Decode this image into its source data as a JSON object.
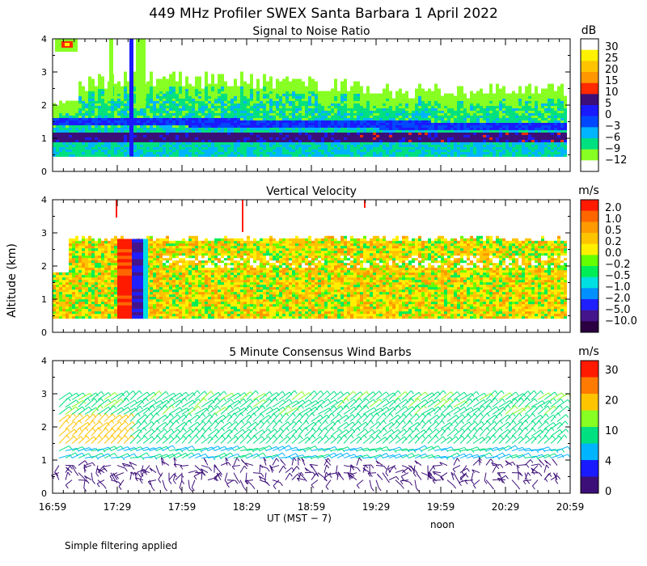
{
  "title": "449 MHz Profiler SWEX Santa Barbara  1 April 2022",
  "ylabel": "Altitude (km)",
  "xlabel": "UT  (MST − 7)",
  "noon_label": "noon",
  "footnote": "Simple filtering applied",
  "chart_data": [
    {
      "type": "heatmap",
      "title": "Signal to Noise Ratio",
      "unit": "dB",
      "x_ticks": [
        "16:59",
        "17:29",
        "17:59",
        "18:29",
        "18:59",
        "19:29",
        "19:59",
        "20:29",
        "20:59"
      ],
      "y_ticks": [
        0,
        1,
        2,
        3,
        4
      ],
      "ylim": [
        0,
        4
      ],
      "colorbar_labels": [
        "30",
        "25",
        "20",
        "15",
        "10",
        "5",
        "0",
        "−3",
        "−6",
        "−9",
        "−12"
      ],
      "colorbar_colors": [
        "#ffffff",
        "#fff200",
        "#ffc400",
        "#ff9800",
        "#ff2a00",
        "#3c0f78",
        "#1a1aff",
        "#0048ff",
        "#00b4ff",
        "#00e080",
        "#88ff22",
        "#ffffff"
      ]
    },
    {
      "type": "heatmap",
      "title": "Vertical Velocity",
      "unit": "m/s",
      "x_ticks": [
        "16:59",
        "17:29",
        "17:59",
        "18:29",
        "18:59",
        "19:29",
        "19:59",
        "20:29",
        "20:59"
      ],
      "y_ticks": [
        0,
        1,
        2,
        3,
        4
      ],
      "ylim": [
        0,
        4
      ],
      "colorbar_labels": [
        "2.0",
        "1.0",
        "0.5",
        "0.2",
        "0.0",
        "−0.2",
        "−0.5",
        "−1.0",
        "−2.0",
        "−5.0",
        "−10.0"
      ],
      "colorbar_colors": [
        "#ff1a00",
        "#ff6600",
        "#ff9a00",
        "#ffc400",
        "#fff000",
        "#66ff00",
        "#00ee55",
        "#00e0e0",
        "#0090ff",
        "#2020ff",
        "#44148c",
        "#2a0040"
      ]
    },
    {
      "type": "scatter",
      "title": "5 Minute Consensus Wind Barbs",
      "unit": "m/s",
      "x_ticks": [
        "16:59",
        "17:29",
        "17:59",
        "18:29",
        "18:59",
        "19:29",
        "19:59",
        "20:29",
        "20:59"
      ],
      "y_ticks": [
        0,
        1,
        2,
        3,
        4
      ],
      "ylim": [
        0,
        4
      ],
      "colorbar_labels": [
        "30",
        "20",
        "10",
        "4",
        "0"
      ],
      "colorbar_colors": [
        "#ff1a00",
        "#ff7a00",
        "#ffc400",
        "#88ff22",
        "#00e080",
        "#00b4ff",
        "#1a1aff",
        "#3c0f78"
      ]
    }
  ]
}
